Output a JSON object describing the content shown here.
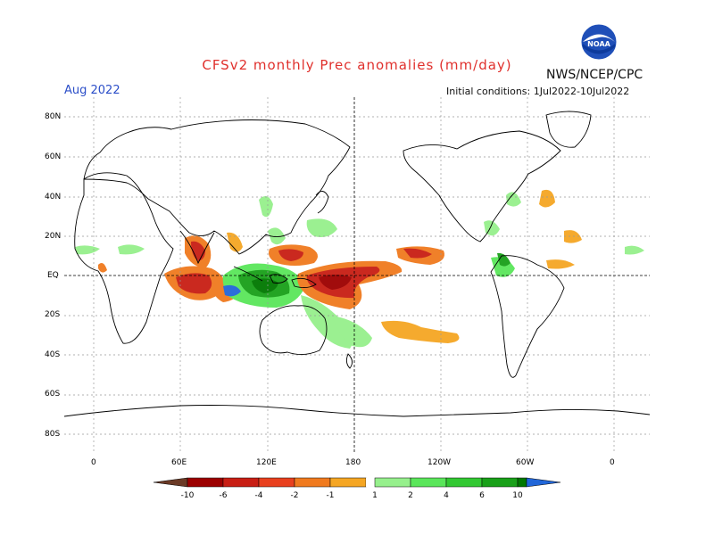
{
  "header": {
    "title": "CFSv2 monthly Prec anomalies (mm/day)",
    "agency": "NWS/NCEP/CPC",
    "period": "Aug 2022",
    "initial_conditions": "Initial conditions: 1Jul2022-10Jul2022",
    "logo_text": "NOAA"
  },
  "map": {
    "lat_labels": [
      "80N",
      "60N",
      "40N",
      "20N",
      "EQ",
      "20S",
      "40S",
      "60S",
      "80S"
    ],
    "lon_labels": [
      "0",
      "60E",
      "120E",
      "180",
      "120W",
      "60W",
      "0"
    ]
  },
  "legend": {
    "labels": [
      "-10",
      "-6",
      "-4",
      "-2",
      "-1",
      "1",
      "2",
      "4",
      "6",
      "10"
    ],
    "colors": {
      "dry_extreme": "#6b3a26",
      "dry": [
        "#9c0000",
        "#c81e14",
        "#e8401e",
        "#f07a1e",
        "#f5a623"
      ],
      "neutral": "#ffffff",
      "wet": [
        "#96f08c",
        "#5ae65a",
        "#32c832",
        "#19a019",
        "#007800"
      ],
      "wet_extreme": "#2166d8"
    }
  },
  "colors": {
    "title": "#e0302c",
    "period": "#2b4ec8"
  }
}
